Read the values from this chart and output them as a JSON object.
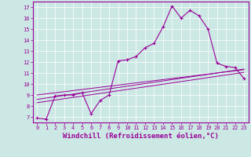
{
  "xlabel": "Windchill (Refroidissement éolien,°C)",
  "bg_color": "#cce8e4",
  "line_color": "#990099",
  "x": [
    0,
    1,
    2,
    3,
    4,
    5,
    6,
    7,
    8,
    9,
    10,
    11,
    12,
    13,
    14,
    15,
    16,
    17,
    18,
    19,
    20,
    21,
    22,
    23
  ],
  "y_main": [
    6.9,
    6.8,
    8.9,
    9.0,
    9.0,
    9.2,
    7.3,
    8.5,
    9.0,
    12.1,
    12.2,
    12.5,
    13.3,
    13.7,
    15.2,
    17.1,
    16.0,
    16.7,
    16.2,
    15.0,
    11.9,
    11.6,
    11.5,
    10.5
  ],
  "y_line1": [
    8.3,
    8.42,
    8.54,
    8.66,
    8.78,
    8.9,
    9.02,
    9.14,
    9.26,
    9.38,
    9.5,
    9.62,
    9.74,
    9.86,
    9.98,
    10.1,
    10.22,
    10.34,
    10.46,
    10.58,
    10.7,
    10.82,
    10.94,
    11.06
  ],
  "y_line2": [
    8.6,
    8.72,
    8.84,
    8.96,
    9.08,
    9.2,
    9.32,
    9.44,
    9.56,
    9.68,
    9.8,
    9.92,
    10.04,
    10.16,
    10.28,
    10.4,
    10.52,
    10.64,
    10.76,
    10.88,
    11.0,
    11.12,
    11.24,
    11.36
  ],
  "y_line3": [
    9.0,
    9.1,
    9.2,
    9.3,
    9.4,
    9.5,
    9.6,
    9.7,
    9.8,
    9.9,
    10.0,
    10.1,
    10.2,
    10.3,
    10.4,
    10.5,
    10.6,
    10.7,
    10.8,
    10.9,
    11.0,
    11.1,
    11.2,
    11.3
  ],
  "ylim": [
    6.5,
    17.5
  ],
  "xlim": [
    -0.5,
    23.5
  ],
  "yticks": [
    7,
    8,
    9,
    10,
    11,
    12,
    13,
    14,
    15,
    16,
    17
  ],
  "xticks": [
    0,
    1,
    2,
    3,
    4,
    5,
    6,
    7,
    8,
    9,
    10,
    11,
    12,
    13,
    14,
    15,
    16,
    17,
    18,
    19,
    20,
    21,
    22,
    23
  ],
  "tick_fontsize": 5.0,
  "xlabel_fontsize": 6.5
}
